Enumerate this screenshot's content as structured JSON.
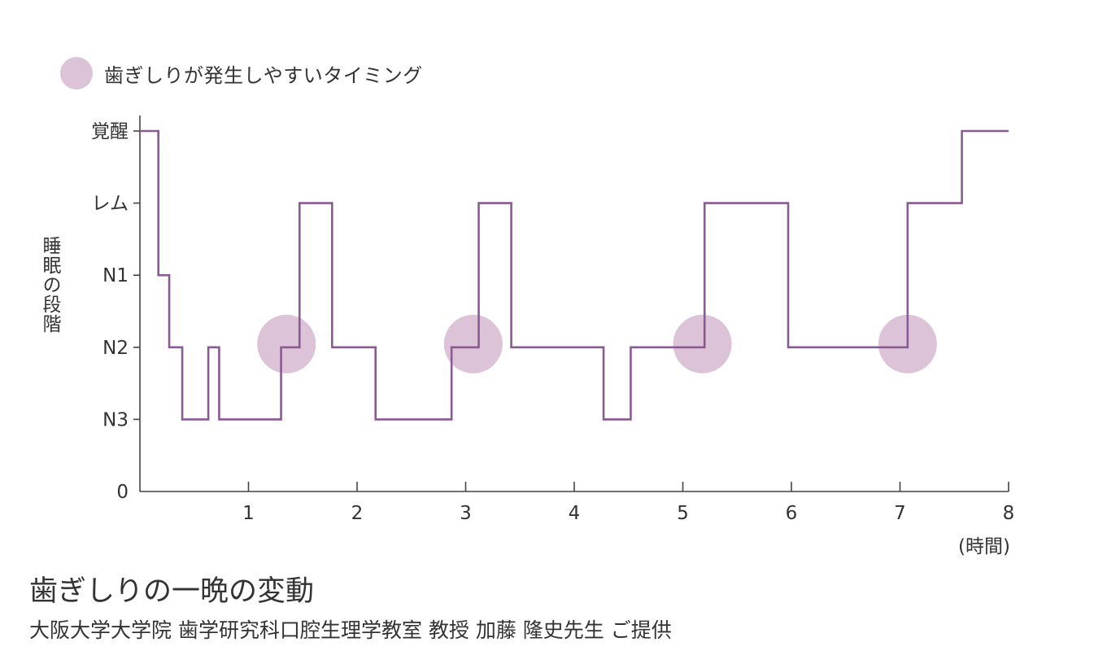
{
  "legend": {
    "label": "歯ぎしりが発生しやすいタイミング",
    "color": "#dcc3d8"
  },
  "caption": {
    "title": "歯ぎしりの一晩の変動",
    "credit": "大阪大学大学院 歯学研究科口腔生理学教室 教授 加藤 隆史先生 ご提供"
  },
  "chart_data": {
    "type": "line",
    "step": true,
    "xlabel": "",
    "xunit": "(時間)",
    "ylabel": "睡眠の段階",
    "xlim": [
      0,
      8
    ],
    "xticks": [
      "1",
      "2",
      "3",
      "4",
      "5",
      "6",
      "7",
      "8"
    ],
    "yticks": [
      "0",
      "N3",
      "N2",
      "N1",
      "レム",
      "覚醒"
    ],
    "line_color": "#8a5a93",
    "series": [
      {
        "points": [
          [
            0.0,
            "覚醒"
          ],
          [
            0.17,
            "N1"
          ],
          [
            0.27,
            "N2"
          ],
          [
            0.39,
            "N3"
          ],
          [
            0.63,
            "N2"
          ],
          [
            0.73,
            "N3"
          ],
          [
            1.3,
            "N2"
          ],
          [
            1.47,
            "レム"
          ],
          [
            1.77,
            "N2"
          ],
          [
            2.17,
            "N3"
          ],
          [
            2.87,
            "N2"
          ],
          [
            3.12,
            "レム"
          ],
          [
            3.42,
            "N2"
          ],
          [
            4.27,
            "N3"
          ],
          [
            4.52,
            "N2"
          ],
          [
            5.2,
            "レム"
          ],
          [
            5.97,
            "N2"
          ],
          [
            7.07,
            "レム"
          ],
          [
            7.57,
            "覚醒"
          ],
          [
            8.0,
            "覚醒"
          ]
        ]
      }
    ],
    "markers": [
      {
        "x": 1.35,
        "stage": "N2"
      },
      {
        "x": 3.07,
        "stage": "N2"
      },
      {
        "x": 5.18,
        "stage": "N2"
      },
      {
        "x": 7.07,
        "stage": "N2"
      }
    ],
    "marker_color": "#dcc3d8",
    "grid": false
  }
}
